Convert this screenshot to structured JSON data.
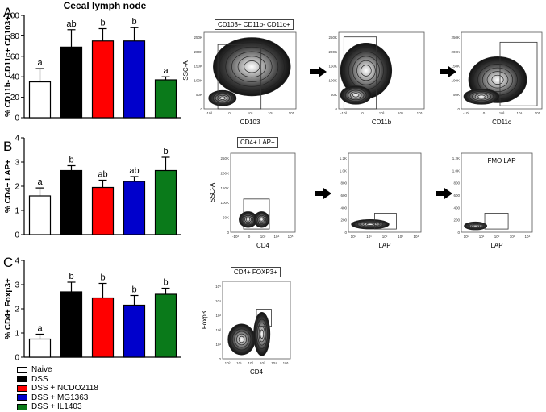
{
  "figure_title": "Cecal lymph node",
  "panel_letters": [
    "A",
    "B",
    "C"
  ],
  "chart_data": [
    {
      "type": "bar",
      "panel": "A",
      "ylabel": "% CD11b- CD11c+ CD103+",
      "ylim": [
        0,
        100
      ],
      "yticks": [
        0,
        20,
        40,
        60,
        80,
        100
      ],
      "categories": [
        "Naive",
        "DSS",
        "DSS + NCDO2118",
        "DSS + MG1363",
        "DSS + IL1403"
      ],
      "values": [
        35,
        69,
        75,
        75,
        37
      ],
      "errors": [
        13,
        17,
        12,
        13,
        3
      ],
      "significance_letters": [
        "a",
        "ab",
        "b",
        "b",
        "a"
      ]
    },
    {
      "type": "bar",
      "panel": "B",
      "ylabel": "% CD4+ LAP+",
      "ylim": [
        0,
        4
      ],
      "yticks": [
        0,
        1,
        2,
        3,
        4
      ],
      "categories": [
        "Naive",
        "DSS",
        "DSS + NCDO2118",
        "DSS + MG1363",
        "DSS + IL1403"
      ],
      "values": [
        1.6,
        2.65,
        1.95,
        2.2,
        2.65
      ],
      "errors": [
        0.33,
        0.2,
        0.3,
        0.2,
        0.55
      ],
      "significance_letters": [
        "a",
        "b",
        "ab",
        "ab",
        "b"
      ]
    },
    {
      "type": "bar",
      "panel": "C",
      "ylabel": "% CD4+ Foxp3+",
      "ylim": [
        0,
        4
      ],
      "yticks": [
        0,
        1,
        2,
        3,
        4
      ],
      "categories": [
        "Naive",
        "DSS",
        "DSS + NCDO2118",
        "DSS + MG1363",
        "DSS + IL1403"
      ],
      "values": [
        0.75,
        2.7,
        2.45,
        2.15,
        2.6
      ],
      "errors": [
        0.2,
        0.4,
        0.6,
        0.4,
        0.25
      ],
      "significance_letters": [
        "a",
        "b",
        "b",
        "b",
        "b"
      ]
    }
  ],
  "bar_colors": [
    "#ffffff",
    "#000000",
    "#ff0000",
    "#0000cc",
    "#0a7a1a"
  ],
  "legend": [
    {
      "label": "Naive",
      "color": "#ffffff"
    },
    {
      "label": "DSS",
      "color": "#000000"
    },
    {
      "label": "DSS + NCDO2118",
      "color": "#ff0000"
    },
    {
      "label": "DSS + MG1363",
      "color": "#0000cc"
    },
    {
      "label": "DSS + IL1403",
      "color": "#0a7a1a"
    }
  ],
  "flow_rows": [
    {
      "gate_label": "CD103+ CD11b- CD11c+",
      "plots": [
        {
          "ylabel": "SSC-A",
          "xlabel": "CD103",
          "yticks": [
            "0",
            "50K",
            "100K",
            "150K",
            "200K",
            "250K"
          ],
          "xticks": [
            "-10³",
            "0",
            "10³",
            "10⁴",
            "10⁵"
          ]
        },
        {
          "ylabel": "",
          "xlabel": "CD11b",
          "yticks": [
            "0",
            "50K",
            "100K",
            "150K",
            "200K",
            "250K"
          ],
          "xticks": [
            "-10³",
            "0",
            "10³",
            "10⁴",
            "10⁵"
          ]
        },
        {
          "ylabel": "",
          "xlabel": "CD11c",
          "yticks": [
            "0",
            "50K",
            "100K",
            "150K",
            "200K",
            "250K"
          ],
          "xticks": [
            "-10³",
            "0",
            "10³",
            "10⁴",
            "10⁵"
          ]
        }
      ]
    },
    {
      "gate_label": "CD4+ LAP+",
      "plots": [
        {
          "ylabel": "SSC-A",
          "xlabel": "CD4",
          "yticks": [
            "0",
            "50K",
            "100K",
            "150K",
            "200K",
            "250K"
          ],
          "xticks": [
            "-10³",
            "0",
            "10³",
            "10⁴",
            "10⁵"
          ],
          "title": ""
        },
        {
          "ylabel": "",
          "xlabel": "LAP",
          "yticks": [
            "0",
            "200",
            "400",
            "600",
            "800",
            "1.0K",
            "1.2K"
          ],
          "xticks": [
            "10⁰",
            "10¹",
            "10²",
            "10³",
            "10⁴"
          ],
          "title": ""
        },
        {
          "ylabel": "",
          "xlabel": "LAP",
          "yticks": [
            "0",
            "200",
            "400",
            "600",
            "800",
            "1.0K",
            "1.2K"
          ],
          "xticks": [
            "10⁰",
            "10¹",
            "10²",
            "10³",
            "10⁴"
          ],
          "title": "FMO LAP"
        }
      ]
    },
    {
      "gate_label": "CD4+ FOXP3+",
      "plots": [
        {
          "ylabel": "Foxp3",
          "xlabel": "CD4",
          "yticks": [
            "0",
            "10¹",
            "10²",
            "10³",
            "10⁴",
            "10⁵"
          ],
          "xticks": [
            "10⁰",
            "10¹",
            "10²",
            "10³",
            "10⁴",
            "10⁵"
          ]
        }
      ]
    }
  ]
}
